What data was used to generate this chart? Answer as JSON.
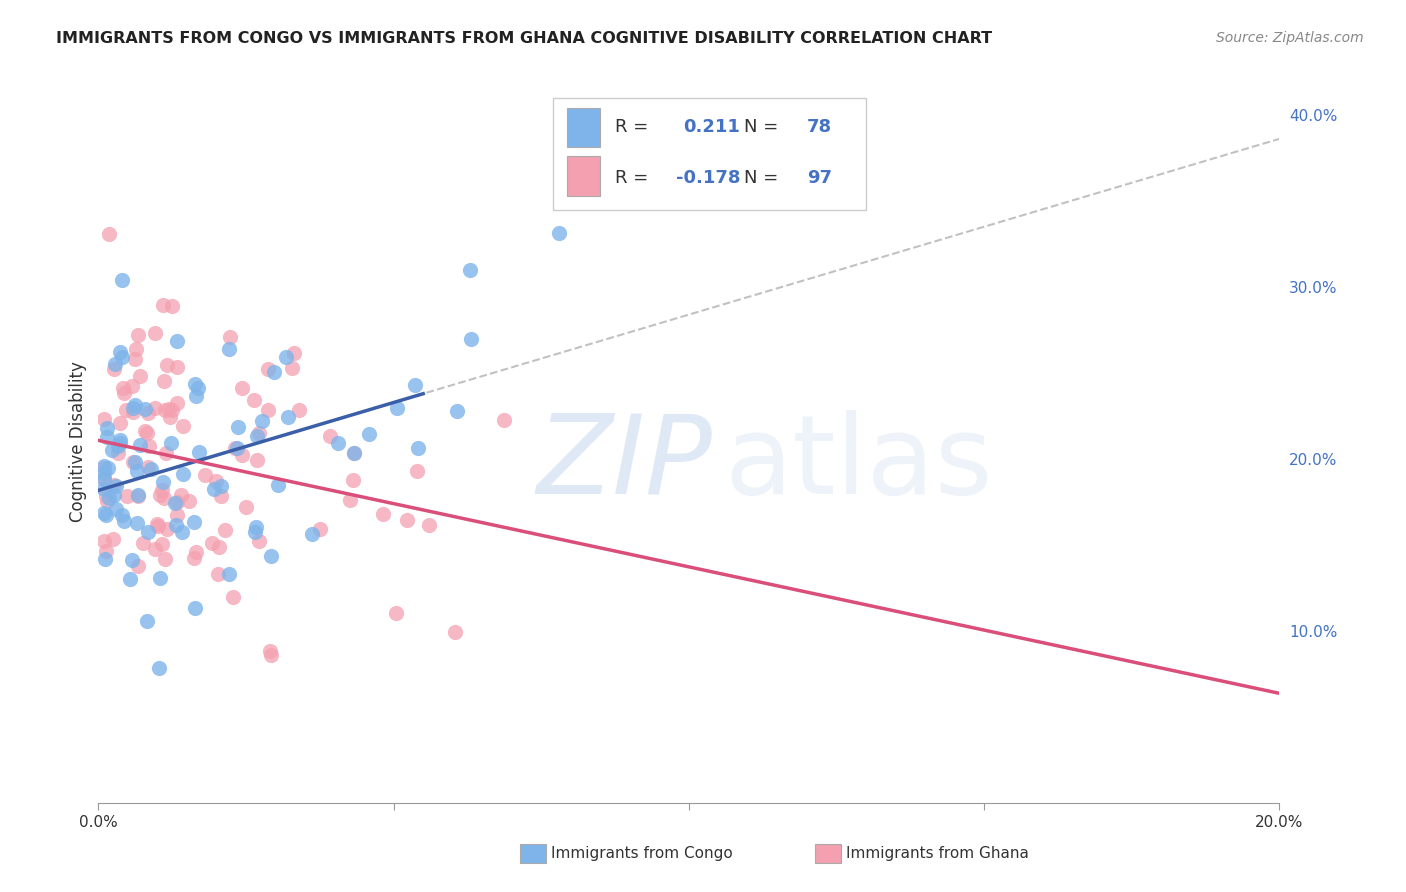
{
  "title": "IMMIGRANTS FROM CONGO VS IMMIGRANTS FROM GHANA COGNITIVE DISABILITY CORRELATION CHART",
  "source": "Source: ZipAtlas.com",
  "ylabel": "Cognitive Disability",
  "xlim": [
    0.0,
    0.2
  ],
  "ylim": [
    0.0,
    0.42
  ],
  "yticks_right": [
    0.1,
    0.2,
    0.3,
    0.4
  ],
  "ytick_labels_right": [
    "10.0%",
    "20.0%",
    "30.0%",
    "40.0%"
  ],
  "congo_color": "#7EB4EA",
  "ghana_color": "#F4A0B0",
  "congo_R": 0.211,
  "congo_N": 78,
  "ghana_R": -0.178,
  "ghana_N": 97,
  "congo_line_color": "#3A5FA8",
  "ghana_line_color": "#D94F7A",
  "dashed_line_color": "#BBBBBB",
  "legend_label_congo": "Immigrants from Congo",
  "legend_label_ghana": "Immigrants from Ghana",
  "background_color": "#FFFFFF",
  "grid_color": "#CCCCCC",
  "title_color": "#222222",
  "right_axis_color": "#4472C4",
  "congo_seed": 42,
  "ghana_seed": 7
}
